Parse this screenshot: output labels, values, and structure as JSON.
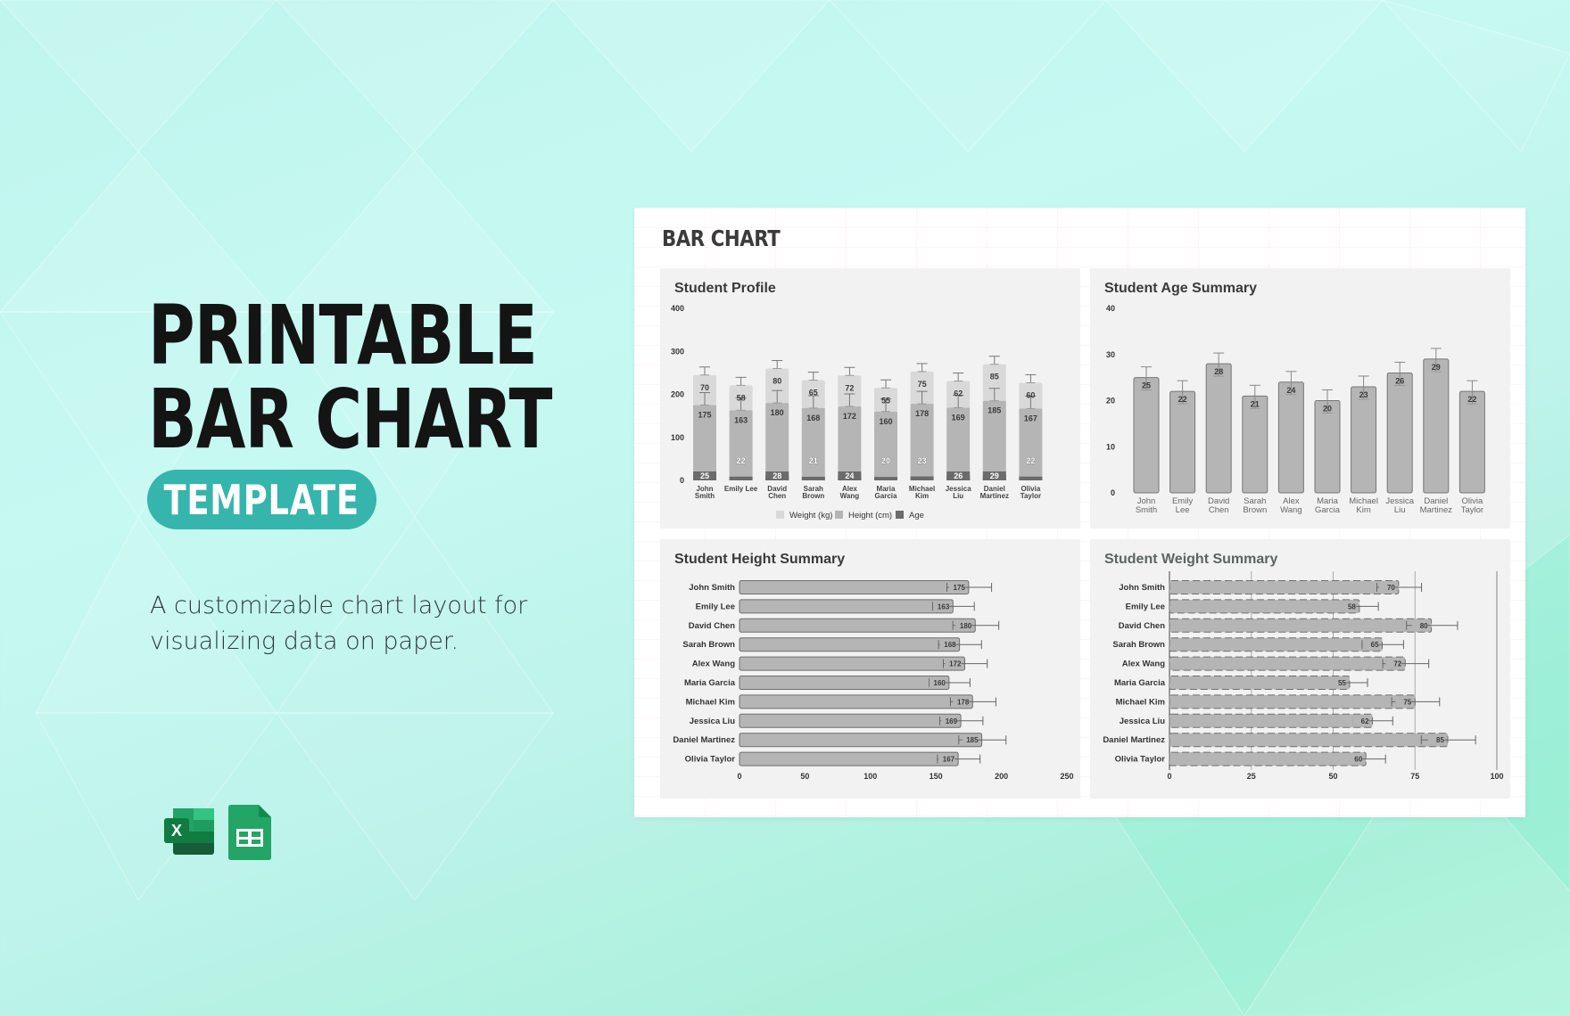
{
  "hero": {
    "title_line1": "PRINTABLE",
    "title_line2": "BAR CHART",
    "badge": "TEMPLATE",
    "badge_color": "#35b5ab",
    "description": "A customizable chart layout for visualizing data on paper.",
    "app_icons": [
      "excel-icon",
      "google-sheets-icon"
    ]
  },
  "card": {
    "title": "BAR CHART"
  },
  "panels": {
    "profile": {
      "title": "Student Profile"
    },
    "age": {
      "title": "Student Age Summary"
    },
    "height": {
      "title": "Student Height Summary"
    },
    "weight": {
      "title": "Student Weight Summary"
    }
  },
  "chart_data": [
    {
      "type": "bar",
      "stacked": true,
      "title": "Student Profile",
      "categories": [
        "John Smith",
        "Emily Lee",
        "David Chen",
        "Sarah Brown",
        "Alex Wang",
        "Maria Garcia",
        "Michael Kim",
        "Jessica Liu",
        "Daniel Martinez",
        "Olivia Taylor"
      ],
      "series": [
        {
          "name": "Age",
          "color": "#6b6b6b",
          "values": [
            25,
            22,
            28,
            21,
            24,
            20,
            23,
            26,
            29,
            22
          ]
        },
        {
          "name": "Height (cm)",
          "color": "#b5b5b5",
          "values": [
            175,
            163,
            180,
            168,
            172,
            160,
            178,
            169,
            185,
            167
          ]
        },
        {
          "name": "Weight (kg)",
          "color": "#d9d9d9",
          "values": [
            70,
            58,
            80,
            65,
            72,
            55,
            75,
            62,
            85,
            60
          ]
        }
      ],
      "legend": [
        "Weight (kg)",
        "Height (cm)",
        "Age"
      ],
      "legend_position": "bottom",
      "yticks": [
        0,
        100,
        200,
        300,
        400
      ],
      "ylim": [
        0,
        400
      ],
      "error_bars": true,
      "grid": false
    },
    {
      "type": "bar",
      "title": "Student Age Summary",
      "categories": [
        "John Smith",
        "Emily Lee",
        "David Chen",
        "Sarah Brown",
        "Alex Wang",
        "Maria Garcia",
        "Michael Kim",
        "Jessica Liu",
        "Daniel Martinez",
        "Olivia Taylor"
      ],
      "values": [
        25,
        22,
        28,
        21,
        24,
        20,
        23,
        26,
        29,
        22
      ],
      "yticks": [
        0,
        10,
        20,
        30,
        40
      ],
      "ylim": [
        0,
        40
      ],
      "error_bars": true,
      "grid": false
    },
    {
      "type": "bar",
      "orientation": "horizontal",
      "title": "Student Height Summary",
      "categories": [
        "John Smith",
        "Emily Lee",
        "David Chen",
        "Sarah Brown",
        "Alex Wang",
        "Maria Garcia",
        "Michael Kim",
        "Jessica Liu",
        "Daniel Martinez",
        "Olivia Taylor"
      ],
      "values": [
        175,
        163,
        180,
        168,
        172,
        160,
        178,
        169,
        185,
        167
      ],
      "xticks": [
        0,
        50,
        100,
        150,
        200,
        250
      ],
      "xlim": [
        0,
        250
      ],
      "error_bars": true,
      "grid": false
    },
    {
      "type": "bar",
      "orientation": "horizontal",
      "title": "Student Weight Summary",
      "categories": [
        "John Smith",
        "Emily Lee",
        "David Chen",
        "Sarah Brown",
        "Alex Wang",
        "Maria Garcia",
        "Michael Kim",
        "Jessica Liu",
        "Daniel Martinez",
        "Olivia Taylor"
      ],
      "values": [
        70,
        58,
        80,
        65,
        72,
        55,
        75,
        62,
        85,
        60
      ],
      "xticks": [
        0,
        25,
        50,
        75,
        100
      ],
      "xlim": [
        0,
        100
      ],
      "error_bars": true,
      "grid": true,
      "bar_border": "dashed"
    }
  ]
}
